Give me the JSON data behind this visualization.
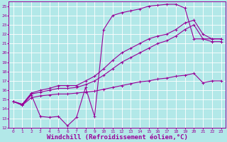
{
  "background_color": "#b2e8e8",
  "grid_color": "#ffffff",
  "line_color": "#990099",
  "xlabel": "Windchill (Refroidissement éolien,°C)",
  "xlabel_fontsize": 6.5,
  "xlim": [
    -0.5,
    23.5
  ],
  "ylim": [
    12,
    25.5
  ],
  "xticks": [
    0,
    1,
    2,
    3,
    4,
    5,
    6,
    7,
    8,
    9,
    10,
    11,
    12,
    13,
    14,
    15,
    16,
    17,
    18,
    19,
    20,
    21,
    22,
    23
  ],
  "yticks": [
    12,
    13,
    14,
    15,
    16,
    17,
    18,
    19,
    20,
    21,
    22,
    23,
    24,
    25
  ],
  "line1_x": [
    0,
    1,
    2,
    3,
    4,
    5,
    6,
    7,
    8,
    9,
    10,
    11,
    12,
    13,
    14,
    15,
    16,
    17,
    18,
    19,
    20,
    21,
    22,
    23
  ],
  "line1_y": [
    14.8,
    14.4,
    15.5,
    13.2,
    13.1,
    13.2,
    12.2,
    13.1,
    16.3,
    13.2,
    22.5,
    24.0,
    24.3,
    24.5,
    24.7,
    25.0,
    25.1,
    25.2,
    25.2,
    24.8,
    21.5,
    21.5,
    21.5,
    21.5
  ],
  "line2_x": [
    0,
    1,
    2,
    3,
    4,
    5,
    6,
    7,
    8,
    9,
    10,
    11,
    12,
    13,
    14,
    15,
    16,
    17,
    18,
    19,
    20,
    21,
    22,
    23
  ],
  "line2_y": [
    14.8,
    14.5,
    15.7,
    16.0,
    16.2,
    16.5,
    16.5,
    16.5,
    17.0,
    17.5,
    18.3,
    19.2,
    20.0,
    20.5,
    21.0,
    21.5,
    21.8,
    22.0,
    22.5,
    23.2,
    23.5,
    22.0,
    21.5,
    21.5
  ],
  "line3_x": [
    0,
    1,
    2,
    3,
    4,
    5,
    6,
    7,
    8,
    9,
    10,
    11,
    12,
    13,
    14,
    15,
    16,
    17,
    18,
    19,
    20,
    21,
    22,
    23
  ],
  "line3_y": [
    14.8,
    14.5,
    15.6,
    15.8,
    16.0,
    16.2,
    16.2,
    16.3,
    16.6,
    17.0,
    17.6,
    18.3,
    19.0,
    19.5,
    20.0,
    20.5,
    21.0,
    21.3,
    21.8,
    22.5,
    23.0,
    21.5,
    21.2,
    21.2
  ],
  "line4_x": [
    0,
    1,
    2,
    3,
    4,
    5,
    6,
    7,
    8,
    9,
    10,
    11,
    12,
    13,
    14,
    15,
    16,
    17,
    18,
    19,
    20,
    21,
    22,
    23
  ],
  "line4_y": [
    14.8,
    14.4,
    15.2,
    15.4,
    15.5,
    15.6,
    15.6,
    15.7,
    15.8,
    15.9,
    16.1,
    16.3,
    16.5,
    16.7,
    16.9,
    17.0,
    17.2,
    17.3,
    17.5,
    17.6,
    17.8,
    16.8,
    17.0,
    17.0
  ]
}
